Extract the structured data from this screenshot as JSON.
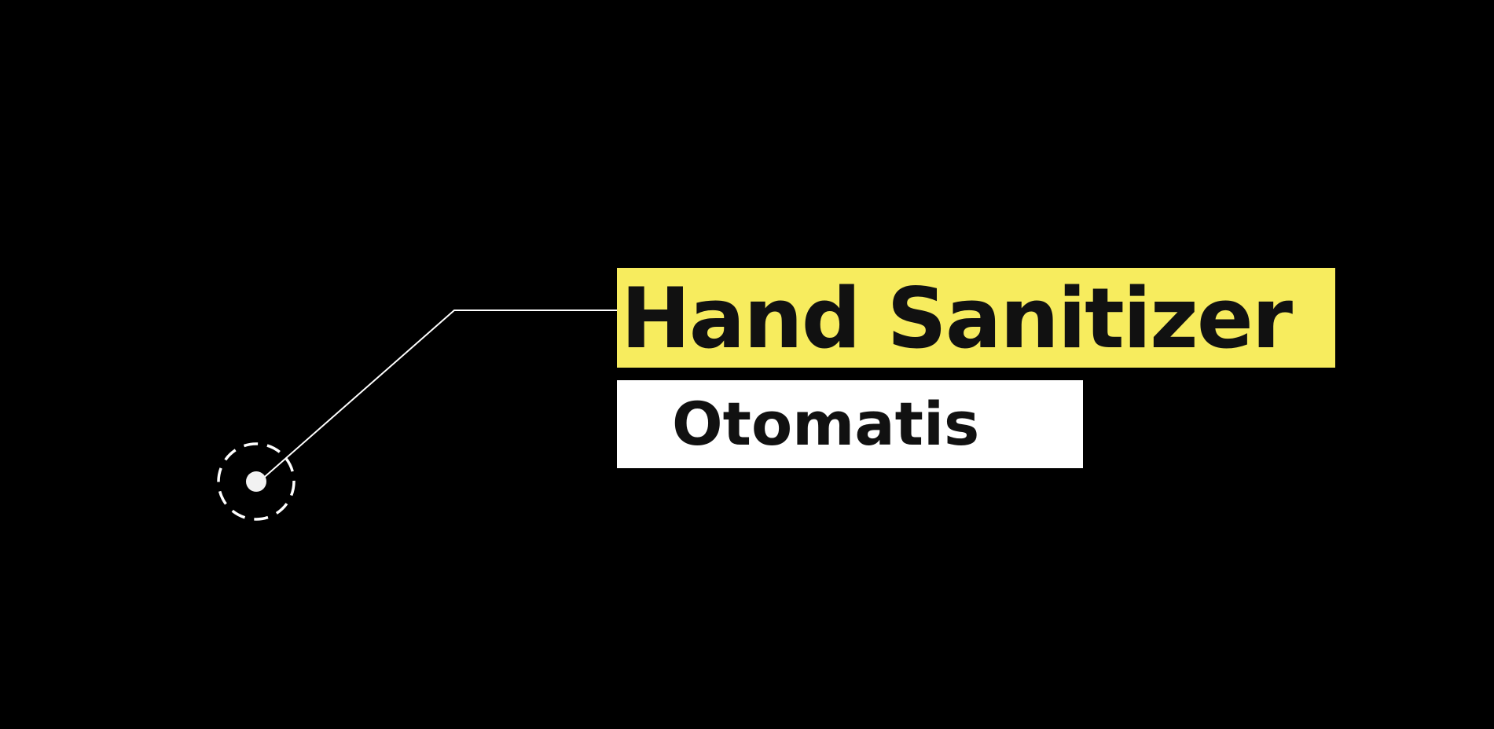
{
  "title": {
    "text": "Hand Sanitizer",
    "background_color": "#f7ec5e",
    "text_color": "#111111"
  },
  "subtitle": {
    "text": "Otomatis",
    "background_color": "#ffffff",
    "text_color": "#111111"
  },
  "background_color": "#000000",
  "line_color": "#ffffff"
}
